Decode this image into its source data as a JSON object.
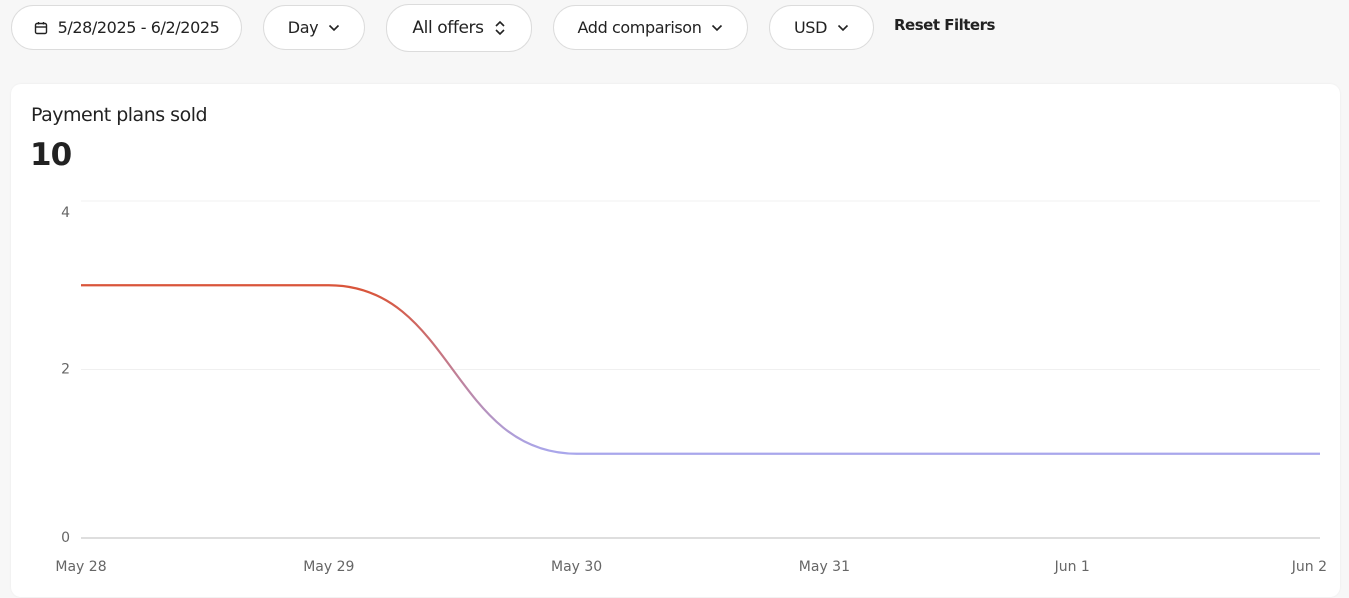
{
  "filters": {
    "date_range": "5/28/2025 - 6/2/2025",
    "interval": "Day",
    "offers": "All offers",
    "comparison": "Add comparison",
    "currency": "USD",
    "reset": "Reset Filters"
  },
  "chart_data": {
    "type": "line",
    "title": "Payment plans sold",
    "total": 10,
    "categories": [
      "May 28",
      "May 29",
      "May 30",
      "May 31",
      "Jun 1",
      "Jun 2"
    ],
    "values": [
      3,
      3,
      1,
      1,
      1,
      1
    ],
    "gradient": [
      "#d9553b",
      "#a9a7ec"
    ],
    "ylim": [
      0,
      4
    ],
    "yticks": [
      0,
      2,
      4
    ],
    "grid": true
  }
}
